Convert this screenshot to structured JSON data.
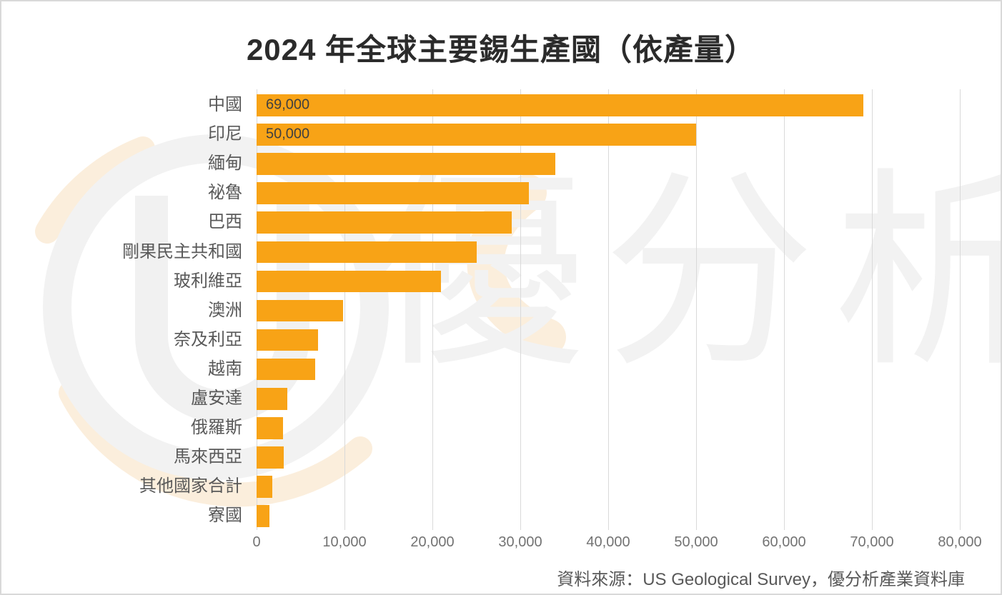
{
  "title": "2024 年全球主要錫生產國（依產量）",
  "source_note": "資料來源：US Geological Survey，優分析產業資料庫",
  "watermark": {
    "text": "優分析",
    "logo": "ua-circle-logo"
  },
  "colors": {
    "bar": "#F8A316",
    "bar_value_label": "#404040",
    "category_label": "#595959",
    "tick_label": "#737373",
    "title": "#2B2B2B",
    "source": "#595959",
    "gridline": "#D9D9D9",
    "canvas_border": "#D9D9D9",
    "watermark_gray": "#F2F2F2",
    "watermark_cream": "#FBEEDC"
  },
  "chart_data": {
    "type": "bar",
    "orientation": "horizontal",
    "title": "2024 年全球主要錫生產國（依產量）",
    "categories": [
      "中國",
      "印尼",
      "緬甸",
      "祕魯",
      "巴西",
      "剛果民主共和國",
      "玻利維亞",
      "澳洲",
      "奈及利亞",
      "越南",
      "盧安達",
      "俄羅斯",
      "馬來西亞",
      "其他國家合計",
      "寮國"
    ],
    "values": [
      69000,
      50000,
      34000,
      31000,
      29000,
      25000,
      21000,
      9800,
      7000,
      6700,
      3500,
      3000,
      3100,
      1800,
      1500
    ],
    "bar_labels": [
      "69,000",
      "50,000",
      "",
      "",
      "",
      "",
      "",
      "",
      "",
      "",
      "",
      "",
      "",
      "",
      ""
    ],
    "x_ticks": [
      0,
      10000,
      20000,
      30000,
      40000,
      50000,
      60000,
      70000,
      80000
    ],
    "x_tick_labels": [
      "0",
      "10,000",
      "20,000",
      "30,000",
      "40,000",
      "50,000",
      "60,000",
      "70,000",
      "80,000"
    ],
    "xlim": [
      0,
      80000
    ],
    "grid": "vertical",
    "legend": "none",
    "data_label_note": "only first two bars show value labels"
  }
}
